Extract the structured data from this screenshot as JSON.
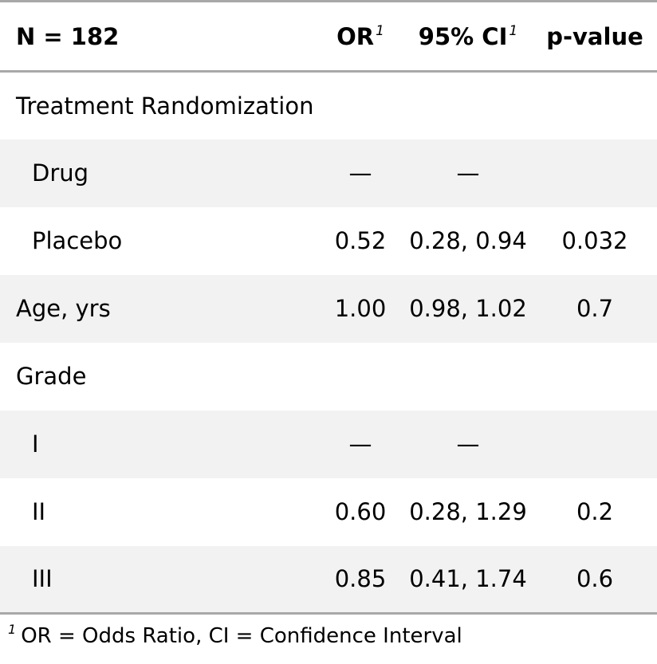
{
  "table": {
    "header": {
      "label": "N = 182",
      "or": "OR",
      "ci": "95% CI",
      "p": "p-value",
      "footnote_marker": "1"
    },
    "rows": [
      {
        "label": "Treatment Randomization",
        "or": "",
        "ci": "",
        "p": "",
        "indent": false,
        "striped": false
      },
      {
        "label": "Drug",
        "or": "—",
        "ci": "—",
        "p": "",
        "indent": true,
        "striped": true
      },
      {
        "label": "Placebo",
        "or": "0.52",
        "ci": "0.28, 0.94",
        "p": "0.032",
        "indent": true,
        "striped": false
      },
      {
        "label": "Age, yrs",
        "or": "1.00",
        "ci": "0.98, 1.02",
        "p": "0.7",
        "indent": false,
        "striped": true
      },
      {
        "label": "Grade",
        "or": "",
        "ci": "",
        "p": "",
        "indent": false,
        "striped": false
      },
      {
        "label": "I",
        "or": "—",
        "ci": "—",
        "p": "",
        "indent": true,
        "striped": true
      },
      {
        "label": "II",
        "or": "0.60",
        "ci": "0.28, 1.29",
        "p": "0.2",
        "indent": true,
        "striped": false
      },
      {
        "label": "III",
        "or": "0.85",
        "ci": "0.41, 1.74",
        "p": "0.6",
        "indent": true,
        "striped": true
      }
    ],
    "footnote": {
      "marker": "1",
      "text": "OR = Odds Ratio, CI = Confidence Interval"
    }
  },
  "colors": {
    "rule": "#a8a8a8",
    "stripe": "#f2f2f2"
  }
}
